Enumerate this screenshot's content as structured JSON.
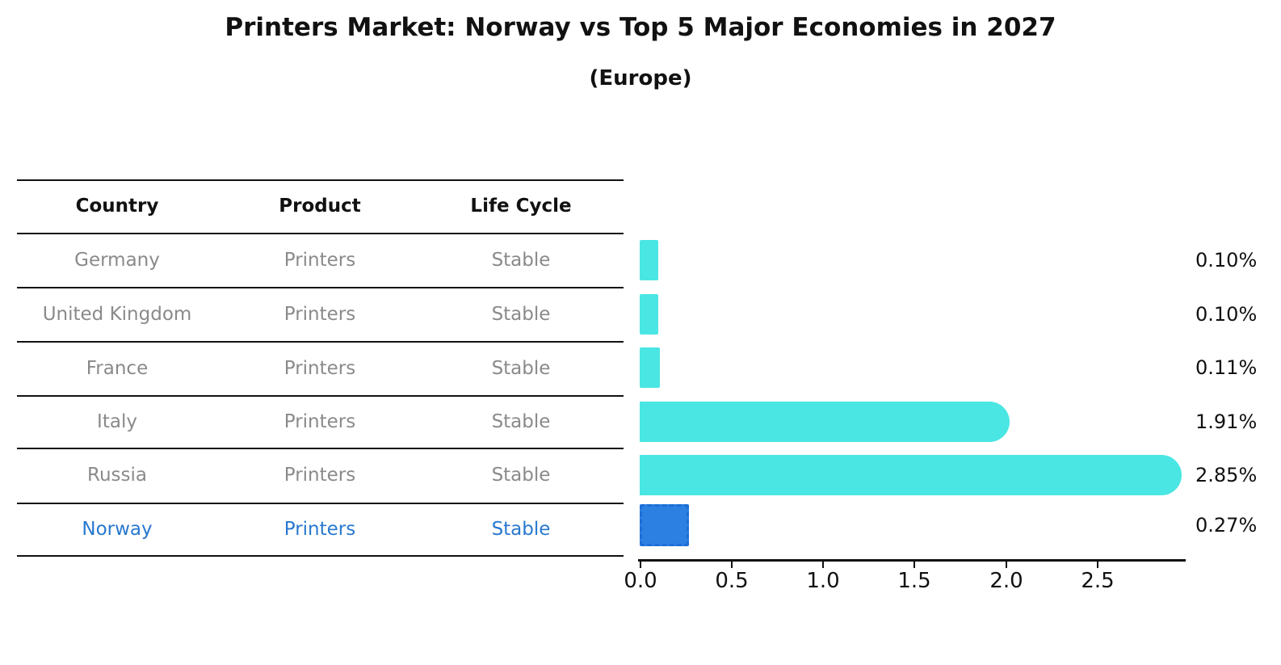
{
  "title": "Printers Market: Norway vs Top 5 Major Economies in 2027",
  "subtitle": "(Europe)",
  "table": {
    "headers": [
      "Country",
      "Product",
      "Life Cycle"
    ],
    "rows": [
      {
        "country": "Germany",
        "product": "Printers",
        "life_cycle": "Stable",
        "value": 0.1,
        "label": "0.10%",
        "highlight": false
      },
      {
        "country": "United Kingdom",
        "product": "Printers",
        "life_cycle": "Stable",
        "value": 0.1,
        "label": "0.10%",
        "highlight": false
      },
      {
        "country": "France",
        "product": "Printers",
        "life_cycle": "Stable",
        "value": 0.11,
        "label": "0.11%",
        "highlight": false
      },
      {
        "country": "Italy",
        "product": "Printers",
        "life_cycle": "Stable",
        "value": 1.91,
        "label": "1.91%",
        "highlight": false
      },
      {
        "country": "Russia",
        "product": "Printers",
        "life_cycle": "Stable",
        "value": 2.85,
        "label": "2.85%",
        "highlight": false
      },
      {
        "country": "Norway",
        "product": "Printers",
        "life_cycle": "Stable",
        "value": 0.27,
        "label": "0.27%",
        "highlight": true
      }
    ]
  },
  "chart_data": {
    "type": "bar",
    "orientation": "horizontal",
    "title": "Printers Market: Norway vs Top 5 Major Economies in 2027",
    "subtitle": "(Europe)",
    "categories": [
      "Germany",
      "United Kingdom",
      "France",
      "Italy",
      "Russia",
      "Norway"
    ],
    "values": [
      0.1,
      0.1,
      0.11,
      1.91,
      2.85,
      0.27
    ],
    "value_labels": [
      "0.10%",
      "0.10%",
      "0.11%",
      "1.91%",
      "2.85%",
      "0.27%"
    ],
    "x_ticks": [
      "0.0",
      "0.5",
      "1.0",
      "1.5",
      "2.0",
      "2.5"
    ],
    "xlim": [
      0,
      2.98
    ],
    "xlabel": "",
    "ylabel": "",
    "grid": false,
    "legend": false,
    "highlight_index": 5,
    "highlight_category": "Norway",
    "bar_color": "#4AE6E4",
    "highlight_bar_color": "#2B80E1",
    "highlight_border_color": "#1C6FD6",
    "highlight_text_color": "#2878cf",
    "row_text_color": "#8a8a8a",
    "axis_color": "#111111"
  }
}
